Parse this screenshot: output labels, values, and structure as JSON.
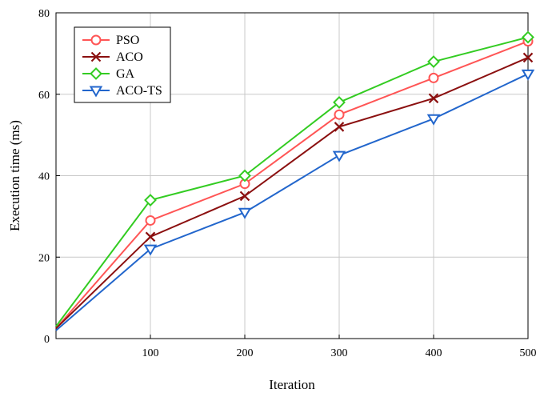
{
  "chart_data": {
    "type": "line",
    "title": "",
    "xlabel": "Iteration",
    "ylabel": "Execution time (ms)",
    "x": [
      0,
      100,
      200,
      300,
      400,
      500
    ],
    "xticks": [
      100,
      200,
      300,
      400,
      500
    ],
    "yticks": [
      0,
      20,
      40,
      60,
      80
    ],
    "xlim": [
      0,
      500
    ],
    "ylim": [
      0,
      80
    ],
    "grid": true,
    "legend_position": "top-left",
    "series": [
      {
        "name": "PSO",
        "marker": "circle",
        "color": "#ff5555",
        "values": [
          2.5,
          29,
          38,
          55,
          64,
          73
        ]
      },
      {
        "name": "ACO",
        "marker": "x",
        "color": "#8b1010",
        "values": [
          2.5,
          25,
          35,
          52,
          59,
          69
        ]
      },
      {
        "name": "GA",
        "marker": "diamond",
        "color": "#33cc22",
        "values": [
          3,
          34,
          40,
          58,
          68,
          74
        ]
      },
      {
        "name": "ACO-TS",
        "marker": "triangle-down",
        "color": "#2266cc",
        "values": [
          2,
          22,
          31,
          45,
          54,
          65
        ]
      }
    ]
  }
}
